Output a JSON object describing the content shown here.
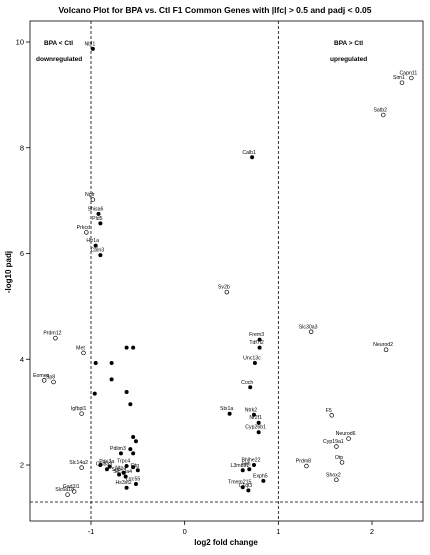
{
  "chart_data": {
    "type": "scatter",
    "title": "Volcano Plot for BPA vs. Ctl F1 Common Genes with |lfc| > 0.5 and padj < 0.05",
    "xlabel": "log2 fold change",
    "ylabel": "-log10 padj",
    "xlim": [
      -1.6,
      2.6
    ],
    "ylim": [
      1.2,
      10.2
    ],
    "x_ticks": [
      -1,
      0,
      1,
      2
    ],
    "y_ticks": [
      2,
      4,
      6,
      8,
      10
    ],
    "threshold_lines": {
      "x": [
        -1,
        1
      ],
      "y": 1.3,
      "style": "dashed"
    },
    "grid": false,
    "annotations": {
      "bpa_less": "BPA < Ctl",
      "downregulated": "downregulated",
      "bpa_greater": "BPA > Ctl",
      "upregulated": "upregulated"
    },
    "series": [
      {
        "marker": "filled",
        "points": [
          {
            "x": -0.98,
            "y": 9.87,
            "label": "Nbl1"
          },
          {
            "x": -0.92,
            "y": 6.75,
            "label": "Shisa6"
          },
          {
            "x": -0.9,
            "y": 6.57,
            "label": "Pld5"
          },
          {
            "x": -0.95,
            "y": 6.15,
            "label": "Htr1a"
          },
          {
            "x": -0.9,
            "y": 5.97,
            "label": "Cbln3"
          },
          {
            "x": 0.72,
            "y": 7.82,
            "label": "Calb1"
          },
          {
            "x": 0.8,
            "y": 4.37,
            "label": "Frem3"
          },
          {
            "x": 0.8,
            "y": 4.22,
            "label": "Tdf7l2"
          },
          {
            "x": 0.75,
            "y": 3.93,
            "label": "Unc13c"
          },
          {
            "x": 0.7,
            "y": 3.47,
            "label": "Coch"
          },
          {
            "x": 0.48,
            "y": 2.97,
            "label": "Stx1a"
          },
          {
            "x": 0.74,
            "y": 2.95,
            "label": "Ntrk2"
          },
          {
            "x": 0.79,
            "y": 2.8,
            "label": "Nr2f1"
          },
          {
            "x": 0.79,
            "y": 2.62,
            "label": "Cyp26b1"
          },
          {
            "x": 0.74,
            "y": 2.0,
            "label": "Bhlhe22"
          },
          {
            "x": 0.62,
            "y": 1.9,
            "label": "L3mbtl1"
          },
          {
            "x": 0.69,
            "y": 1.92,
            "label": "Hrh"
          },
          {
            "x": 0.84,
            "y": 1.7,
            "label": "Exph5"
          },
          {
            "x": 0.62,
            "y": 1.58,
            "label": "Tmem215"
          },
          {
            "x": 0.68,
            "y": 1.52,
            "label": "C1ql3"
          },
          {
            "x": -0.8,
            "y": 1.97,
            "label": "Pde3a"
          },
          {
            "x": -0.62,
            "y": 1.98,
            "label": "Trpc4"
          },
          {
            "x": -0.83,
            "y": 1.92,
            "label": "Col8a3"
          },
          {
            "x": -0.65,
            "y": 1.85,
            "label": "Ntn4"
          },
          {
            "x": -0.5,
            "y": 1.9,
            "label": "Otg"
          },
          {
            "x": -0.7,
            "y": 1.82,
            "label": "Sgo"
          },
          {
            "x": -0.63,
            "y": 1.78,
            "label": "Slc10a4"
          },
          {
            "x": -0.52,
            "y": 1.64,
            "label": "Lrrc55"
          },
          {
            "x": -0.62,
            "y": 1.57,
            "label": "Hs3st2"
          },
          {
            "x": -0.68,
            "y": 2.22,
            "label": "Pdlim3"
          },
          {
            "x": -0.62,
            "y": 4.22,
            "label": ""
          },
          {
            "x": -0.55,
            "y": 4.22,
            "label": ""
          },
          {
            "x": -0.95,
            "y": 3.93,
            "label": ""
          },
          {
            "x": -0.78,
            "y": 3.93,
            "label": ""
          },
          {
            "x": -0.78,
            "y": 3.62,
            "label": ""
          },
          {
            "x": -0.96,
            "y": 3.35,
            "label": ""
          },
          {
            "x": -0.62,
            "y": 3.38,
            "label": ""
          },
          {
            "x": -0.58,
            "y": 3.15,
            "label": ""
          },
          {
            "x": -0.55,
            "y": 2.53,
            "label": ""
          },
          {
            "x": -0.52,
            "y": 2.45,
            "label": ""
          },
          {
            "x": -0.58,
            "y": 2.3,
            "label": ""
          },
          {
            "x": -0.55,
            "y": 2.22,
            "label": ""
          },
          {
            "x": -0.9,
            "y": 2.0,
            "label": ""
          },
          {
            "x": -0.55,
            "y": 1.96,
            "label": ""
          }
        ]
      },
      {
        "marker": "open",
        "points": [
          {
            "x": -0.98,
            "y": 7.02,
            "label": "Ngfr"
          },
          {
            "x": -1.05,
            "y": 6.4,
            "label": "Prkcd"
          },
          {
            "x": -1.38,
            "y": 4.4,
            "label": "Prdm12"
          },
          {
            "x": -1.08,
            "y": 4.12,
            "label": "Met"
          },
          {
            "x": -1.5,
            "y": 3.6,
            "label": "Eomes"
          },
          {
            "x": -1.4,
            "y": 3.57,
            "label": "Sp8"
          },
          {
            "x": -1.1,
            "y": 2.97,
            "label": "Igfbpl1"
          },
          {
            "x": -1.1,
            "y": 1.95,
            "label": "Slc14a2"
          },
          {
            "x": -1.18,
            "y": 1.5,
            "label": "Gad1l1"
          },
          {
            "x": -1.25,
            "y": 1.44,
            "label": "Slc6a18"
          },
          {
            "x": 0.45,
            "y": 5.27,
            "label": "Sv2b"
          },
          {
            "x": 1.35,
            "y": 4.52,
            "label": "Slc30a3"
          },
          {
            "x": 2.15,
            "y": 4.18,
            "label": "Neurod2"
          },
          {
            "x": 2.42,
            "y": 9.32,
            "label": "Capn11"
          },
          {
            "x": 2.32,
            "y": 9.23,
            "label": "Sim1"
          },
          {
            "x": 2.12,
            "y": 8.62,
            "label": "Satb2"
          },
          {
            "x": 1.57,
            "y": 2.94,
            "label": "F5"
          },
          {
            "x": 1.75,
            "y": 2.5,
            "label": "Neurod6"
          },
          {
            "x": 1.62,
            "y": 2.35,
            "label": "Cyp19a1"
          },
          {
            "x": 1.68,
            "y": 2.05,
            "label": "Otp"
          },
          {
            "x": 1.3,
            "y": 1.98,
            "label": "Prdm8"
          },
          {
            "x": 1.62,
            "y": 1.72,
            "label": "Shox2"
          }
        ]
      }
    ]
  }
}
